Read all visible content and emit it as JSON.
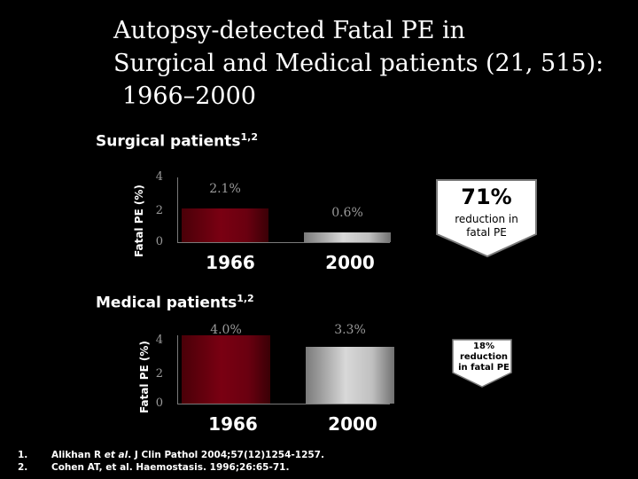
{
  "title": {
    "line1": "Autopsy-detected Fatal PE in",
    "line2": "Surgical and Medical patients (21, 515):",
    "line3": "1966–2000"
  },
  "chart_data": [
    {
      "type": "bar",
      "title": "Surgical patients",
      "title_sup": "1,2",
      "ylabel": "Fatal PE (%)",
      "ylim": [
        0,
        4
      ],
      "yticks": [
        "4",
        "2",
        "0"
      ],
      "categories": [
        "1966",
        "2000"
      ],
      "values": [
        2.1,
        0.6
      ],
      "data_labels": [
        "2.1%",
        "0.6%"
      ],
      "colors": [
        "#6a0010",
        "#c8c8c8"
      ],
      "callout": {
        "big": "71%",
        "text": "reduction in fatal PE"
      }
    },
    {
      "type": "bar",
      "title": "Medical patients",
      "title_sup": "1,2",
      "ylabel": "Fatal PE (%)",
      "ylim": [
        0,
        4
      ],
      "yticks": [
        "4",
        "2",
        "0"
      ],
      "categories": [
        "1966",
        "2000"
      ],
      "values": [
        4.0,
        3.3
      ],
      "data_labels": [
        "4.0%",
        "3.3%"
      ],
      "colors": [
        "#6a0010",
        "#c8c8c8"
      ],
      "callout": {
        "text": "18% reduction in fatal PE"
      }
    }
  ],
  "references": [
    {
      "num": "1.",
      "pre": "Alikhan R ",
      "em": "et al",
      "post": ". J Clin Pathol 2004;57(12)1254-1257."
    },
    {
      "num": "2.",
      "pre": "Cohen AT, et al. Haemostasis. 1996;26:65-71.",
      "em": "",
      "post": ""
    }
  ]
}
